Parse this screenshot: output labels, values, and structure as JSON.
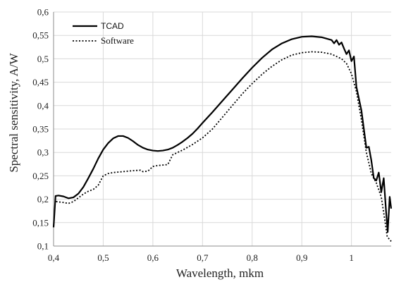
{
  "chart_data": {
    "type": "line",
    "title": "",
    "xlabel": "Wavelength, mkm",
    "ylabel": "Spectral sensitivity, A/W",
    "xlim": [
      0.4,
      1.08
    ],
    "ylim": [
      0.1,
      0.6
    ],
    "grid": true,
    "legend_position": "top-left",
    "x_ticks": [
      {
        "value": 0.4,
        "label": "0,4"
      },
      {
        "value": 0.5,
        "label": "0,5"
      },
      {
        "value": 0.6,
        "label": "0,6"
      },
      {
        "value": 0.7,
        "label": "0,7"
      },
      {
        "value": 0.8,
        "label": "0,8"
      },
      {
        "value": 0.9,
        "label": "0,9"
      },
      {
        "value": 1.0,
        "label": "1"
      }
    ],
    "y_ticks": [
      {
        "value": 0.1,
        "label": "0,1"
      },
      {
        "value": 0.15,
        "label": "0,15"
      },
      {
        "value": 0.2,
        "label": "0,2"
      },
      {
        "value": 0.25,
        "label": "0,25"
      },
      {
        "value": 0.3,
        "label": "0,3"
      },
      {
        "value": 0.35,
        "label": "0,35"
      },
      {
        "value": 0.4,
        "label": "0,4"
      },
      {
        "value": 0.45,
        "label": "0,45"
      },
      {
        "value": 0.5,
        "label": "0,5"
      },
      {
        "value": 0.55,
        "label": "0,55"
      },
      {
        "value": 0.6,
        "label": "0,6"
      }
    ],
    "series": [
      {
        "name": "TCAD",
        "style": "solid",
        "color": "#000000",
        "points": [
          [
            0.4,
            0.14
          ],
          [
            0.404,
            0.207
          ],
          [
            0.41,
            0.208
          ],
          [
            0.42,
            0.206
          ],
          [
            0.43,
            0.202
          ],
          [
            0.44,
            0.204
          ],
          [
            0.45,
            0.212
          ],
          [
            0.46,
            0.226
          ],
          [
            0.47,
            0.245
          ],
          [
            0.48,
            0.265
          ],
          [
            0.49,
            0.287
          ],
          [
            0.5,
            0.306
          ],
          [
            0.51,
            0.32
          ],
          [
            0.52,
            0.33
          ],
          [
            0.53,
            0.335
          ],
          [
            0.54,
            0.335
          ],
          [
            0.55,
            0.331
          ],
          [
            0.56,
            0.324
          ],
          [
            0.57,
            0.316
          ],
          [
            0.58,
            0.31
          ],
          [
            0.59,
            0.306
          ],
          [
            0.6,
            0.304
          ],
          [
            0.61,
            0.303
          ],
          [
            0.62,
            0.304
          ],
          [
            0.63,
            0.306
          ],
          [
            0.64,
            0.31
          ],
          [
            0.65,
            0.316
          ],
          [
            0.66,
            0.323
          ],
          [
            0.67,
            0.331
          ],
          [
            0.68,
            0.34
          ],
          [
            0.69,
            0.351
          ],
          [
            0.7,
            0.363
          ],
          [
            0.72,
            0.386
          ],
          [
            0.74,
            0.41
          ],
          [
            0.76,
            0.434
          ],
          [
            0.78,
            0.458
          ],
          [
            0.8,
            0.481
          ],
          [
            0.82,
            0.502
          ],
          [
            0.84,
            0.52
          ],
          [
            0.86,
            0.533
          ],
          [
            0.88,
            0.542
          ],
          [
            0.9,
            0.547
          ],
          [
            0.92,
            0.548
          ],
          [
            0.94,
            0.546
          ],
          [
            0.95,
            0.543
          ],
          [
            0.96,
            0.54
          ],
          [
            0.965,
            0.533
          ],
          [
            0.97,
            0.54
          ],
          [
            0.975,
            0.53
          ],
          [
            0.98,
            0.535
          ],
          [
            0.985,
            0.522
          ],
          [
            0.99,
            0.51
          ],
          [
            0.995,
            0.518
          ],
          [
            1.0,
            0.495
          ],
          [
            1.005,
            0.505
          ],
          [
            1.01,
            0.44
          ],
          [
            1.02,
            0.39
          ],
          [
            1.025,
            0.35
          ],
          [
            1.03,
            0.31
          ],
          [
            1.035,
            0.312
          ],
          [
            1.04,
            0.283
          ],
          [
            1.045,
            0.245
          ],
          [
            1.05,
            0.24
          ],
          [
            1.055,
            0.257
          ],
          [
            1.06,
            0.215
          ],
          [
            1.065,
            0.245
          ],
          [
            1.07,
            0.17
          ],
          [
            1.073,
            0.13
          ],
          [
            1.077,
            0.205
          ],
          [
            1.08,
            0.18
          ]
        ]
      },
      {
        "name": "Software",
        "style": "dotted",
        "color": "#000000",
        "points": [
          [
            0.405,
            0.195
          ],
          [
            0.42,
            0.193
          ],
          [
            0.43,
            0.191
          ],
          [
            0.44,
            0.195
          ],
          [
            0.45,
            0.203
          ],
          [
            0.46,
            0.211
          ],
          [
            0.47,
            0.217
          ],
          [
            0.48,
            0.221
          ],
          [
            0.49,
            0.23
          ],
          [
            0.495,
            0.24
          ],
          [
            0.5,
            0.25
          ],
          [
            0.51,
            0.255
          ],
          [
            0.52,
            0.257
          ],
          [
            0.54,
            0.259
          ],
          [
            0.56,
            0.261
          ],
          [
            0.575,
            0.262
          ],
          [
            0.58,
            0.259
          ],
          [
            0.59,
            0.26
          ],
          [
            0.6,
            0.27
          ],
          [
            0.61,
            0.272
          ],
          [
            0.62,
            0.273
          ],
          [
            0.63,
            0.274
          ],
          [
            0.64,
            0.295
          ],
          [
            0.65,
            0.3
          ],
          [
            0.66,
            0.305
          ],
          [
            0.68,
            0.317
          ],
          [
            0.7,
            0.331
          ],
          [
            0.72,
            0.35
          ],
          [
            0.74,
            0.375
          ],
          [
            0.76,
            0.4
          ],
          [
            0.78,
            0.425
          ],
          [
            0.8,
            0.447
          ],
          [
            0.82,
            0.467
          ],
          [
            0.84,
            0.484
          ],
          [
            0.86,
            0.498
          ],
          [
            0.88,
            0.508
          ],
          [
            0.9,
            0.513
          ],
          [
            0.92,
            0.515
          ],
          [
            0.94,
            0.514
          ],
          [
            0.96,
            0.51
          ],
          [
            0.97,
            0.505
          ],
          [
            0.98,
            0.5
          ],
          [
            0.99,
            0.49
          ],
          [
            1.0,
            0.468
          ],
          [
            1.01,
            0.43
          ],
          [
            1.02,
            0.37
          ],
          [
            1.03,
            0.3
          ],
          [
            1.04,
            0.255
          ],
          [
            1.05,
            0.235
          ],
          [
            1.06,
            0.205
          ],
          [
            1.068,
            0.15
          ],
          [
            1.072,
            0.12
          ],
          [
            1.08,
            0.11
          ]
        ]
      }
    ]
  }
}
